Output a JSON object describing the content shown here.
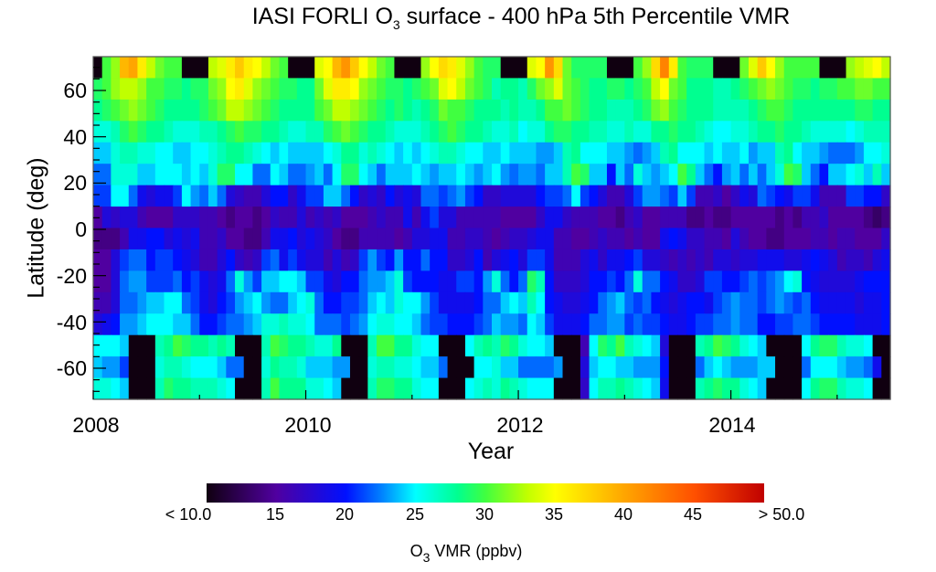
{
  "chart_data": {
    "type": "heatmap",
    "title_main": "IASI FORLI O",
    "title_sub": "3",
    "title_rest": " surface - 400 hPa 5th Percentile VMR",
    "xlabel": "Year",
    "ylabel": "Latitude (deg)",
    "x_start": "2008-01",
    "x_step": "1 month",
    "x_count": 90,
    "xlim": [
      2008.0,
      2015.5
    ],
    "ylim": [
      -73.4,
      74.6
    ],
    "x_ticks": [
      "2008",
      "2010",
      "2012",
      "2014"
    ],
    "y_ticks": [
      "60",
      "40",
      "20",
      "0",
      "-20",
      "-40",
      "-60"
    ],
    "colorbar": {
      "label_main": "O",
      "label_sub": "3",
      "label_rest": " VMR (ppbv)",
      "range": [
        10,
        50
      ],
      "ticks": [
        "< 10.0",
        "15",
        "20",
        "25",
        "30",
        "35",
        "40",
        "45",
        "> 50.0"
      ],
      "stops": [
        [
          10,
          "#100010"
        ],
        [
          15,
          "#5000a0"
        ],
        [
          20,
          "#0010ff"
        ],
        [
          22.5,
          "#0080ff"
        ],
        [
          25,
          "#00ffff"
        ],
        [
          28,
          "#00ff90"
        ],
        [
          30,
          "#40ff40"
        ],
        [
          33,
          "#c0ff00"
        ],
        [
          35,
          "#ffff00"
        ],
        [
          40,
          "#ffa500"
        ],
        [
          45,
          "#ff5000"
        ],
        [
          50,
          "#c00000"
        ]
      ]
    },
    "row_note": "rows ordered north to south, 16 latitude bands; values in ppbv",
    "values": [
      [
        8,
        30,
        32,
        39,
        40,
        36,
        33,
        31,
        30,
        30,
        8,
        8,
        8,
        33,
        34,
        36,
        38,
        36,
        35,
        33,
        31,
        30,
        8,
        8,
        8,
        34,
        35,
        39,
        41,
        38,
        35,
        33,
        31,
        30,
        8,
        8,
        8,
        32,
        35,
        37,
        36,
        34,
        32,
        30,
        29,
        29,
        8,
        8,
        8,
        34,
        35,
        41,
        37,
        31,
        29,
        29,
        29,
        29,
        8,
        8,
        8,
        30,
        32,
        37,
        42,
        36,
        30,
        29,
        29,
        29,
        8,
        8,
        8,
        31,
        34,
        38,
        35,
        32,
        30,
        30,
        30,
        30,
        8,
        8,
        8,
        32,
        33,
        34,
        35,
        33
      ],
      [
        29,
        30,
        32,
        33,
        33,
        32,
        30,
        30,
        29,
        29,
        28,
        29,
        29,
        31,
        32,
        35,
        36,
        34,
        32,
        31,
        30,
        29,
        29,
        28,
        28,
        31,
        34,
        36,
        36,
        35,
        32,
        31,
        30,
        29,
        29,
        28,
        29,
        30,
        31,
        34,
        35,
        33,
        31,
        30,
        29,
        27,
        28,
        28,
        27,
        29,
        31,
        32,
        34,
        31,
        30,
        29,
        28,
        28,
        29,
        29,
        28,
        29,
        30,
        33,
        35,
        31,
        30,
        28,
        28,
        28,
        27,
        27,
        28,
        29,
        30,
        31,
        32,
        31,
        30,
        29,
        29,
        28,
        29,
        29,
        30,
        30,
        31,
        31,
        30,
        30
      ],
      [
        28,
        29,
        30,
        31,
        32,
        31,
        30,
        29,
        28,
        28,
        28,
        28,
        29,
        30,
        31,
        33,
        33,
        32,
        31,
        30,
        29,
        28,
        28,
        28,
        28,
        30,
        31,
        33,
        33,
        32,
        31,
        30,
        29,
        28,
        29,
        28,
        27,
        28,
        29,
        31,
        30,
        30,
        29,
        28,
        28,
        28,
        27,
        28,
        27,
        27,
        28,
        30,
        30,
        31,
        30,
        29,
        28,
        28,
        27,
        27,
        27,
        28,
        29,
        31,
        32,
        30,
        29,
        28,
        28,
        28,
        27,
        27,
        27,
        27,
        28,
        29,
        30,
        30,
        29,
        28,
        28,
        28,
        28,
        28,
        28,
        28,
        29,
        29,
        28,
        28
      ],
      [
        26,
        26,
        27,
        29,
        30,
        29,
        28,
        28,
        27,
        26,
        26,
        26,
        27,
        27,
        28,
        29,
        30,
        29,
        29,
        28,
        28,
        27,
        26,
        26,
        27,
        27,
        29,
        30,
        31,
        30,
        29,
        28,
        28,
        27,
        26,
        26,
        26,
        27,
        28,
        29,
        30,
        29,
        28,
        28,
        27,
        26,
        26,
        27,
        25,
        26,
        26,
        28,
        29,
        29,
        28,
        28,
        27,
        27,
        26,
        26,
        27,
        26,
        26,
        28,
        28,
        29,
        28,
        28,
        27,
        26,
        25,
        25,
        26,
        26,
        27,
        28,
        28,
        29,
        28,
        28,
        27,
        26,
        26,
        26,
        26,
        25,
        26,
        27,
        27,
        27
      ],
      [
        24,
        24,
        26,
        27,
        27,
        26,
        26,
        25,
        25,
        24,
        24,
        25,
        25,
        26,
        27,
        28,
        28,
        27,
        26,
        25,
        24,
        25,
        24,
        24,
        24,
        24,
        25,
        26,
        28,
        28,
        26,
        27,
        26,
        25,
        24,
        25,
        24,
        25,
        26,
        27,
        27,
        26,
        25,
        25,
        24,
        24,
        25,
        24,
        24,
        24,
        23,
        23,
        24,
        27,
        28,
        25,
        25,
        25,
        24,
        24,
        23,
        22,
        23,
        24,
        27,
        28,
        25,
        25,
        25,
        24,
        25,
        24,
        24,
        25,
        23,
        24,
        24,
        27,
        28,
        25,
        24,
        24,
        23,
        22,
        22,
        22,
        23,
        25,
        25,
        26
      ],
      [
        22,
        22,
        26,
        26,
        26,
        24,
        24,
        25,
        25,
        25,
        24,
        25,
        24,
        26,
        29,
        29,
        25,
        25,
        22,
        22,
        25,
        24,
        22,
        22,
        23,
        24,
        22,
        25,
        29,
        29,
        25,
        24,
        22,
        24,
        24,
        24,
        25,
        24,
        23,
        24,
        24,
        25,
        24,
        23,
        24,
        25,
        23,
        22,
        23,
        23,
        22,
        24,
        24,
        27,
        30,
        29,
        24,
        24,
        20,
        24,
        22,
        26,
        24,
        23,
        24,
        25,
        30,
        28,
        24,
        22,
        20,
        23,
        24,
        22,
        24,
        22,
        24,
        26,
        30,
        29,
        24,
        22,
        20,
        24,
        24,
        25,
        26,
        24,
        27,
        24
      ],
      [
        21,
        21,
        25,
        25,
        22,
        19,
        18,
        19,
        19,
        21,
        25,
        23,
        22,
        24,
        22,
        18,
        17,
        16,
        16,
        18,
        20,
        20,
        17,
        19,
        21,
        21,
        24,
        24,
        22,
        20,
        17,
        18,
        17,
        20,
        18,
        19,
        18,
        22,
        22,
        21,
        22,
        23,
        21,
        20,
        17,
        17,
        18,
        18,
        18,
        18,
        20,
        21,
        21,
        22,
        25,
        21,
        20,
        18,
        16,
        16,
        18,
        21,
        23,
        23,
        22,
        21,
        24,
        21,
        16,
        16,
        17,
        15,
        17,
        19,
        18,
        22,
        21,
        20,
        19,
        21,
        21,
        19,
        16,
        16,
        16,
        21,
        21,
        20,
        20,
        17
      ],
      [
        15,
        18,
        17,
        18,
        18,
        16,
        15,
        15,
        15,
        17,
        17,
        17,
        16,
        16,
        15,
        14,
        15,
        15,
        14,
        15,
        17,
        16,
        16,
        18,
        16,
        17,
        16,
        17,
        15,
        15,
        15,
        16,
        17,
        16,
        16,
        19,
        16,
        19,
        21,
        18,
        18,
        16,
        16,
        16,
        16,
        16,
        15,
        15,
        15,
        15,
        17,
        19,
        19,
        17,
        16,
        16,
        16,
        15,
        15,
        14,
        16,
        17,
        15,
        15,
        16,
        16,
        16,
        14,
        14,
        15,
        14,
        14,
        15,
        15,
        15,
        15,
        15,
        14,
        15,
        14,
        16,
        16,
        17,
        15,
        15,
        15,
        15,
        14,
        13,
        14
      ],
      [
        14,
        14,
        14,
        16,
        19,
        19,
        20,
        20,
        18,
        19,
        18,
        19,
        16,
        16,
        17,
        15,
        15,
        14,
        14,
        16,
        19,
        19,
        20,
        18,
        19,
        18,
        17,
        15,
        14,
        14,
        16,
        16,
        16,
        16,
        15,
        16,
        18,
        18,
        19,
        19,
        16,
        16,
        17,
        17,
        16,
        15,
        16,
        17,
        17,
        18,
        19,
        19,
        16,
        16,
        15,
        15,
        16,
        17,
        16,
        16,
        15,
        16,
        15,
        15,
        19,
        20,
        19,
        17,
        17,
        16,
        16,
        15,
        18,
        16,
        15,
        15,
        14,
        14,
        15,
        15,
        15,
        16,
        16,
        15,
        16,
        16,
        15,
        15,
        15,
        17
      ],
      [
        15,
        15,
        18,
        21,
        22,
        22,
        20,
        21,
        21,
        20,
        19,
        18,
        16,
        16,
        18,
        20,
        17,
        16,
        17,
        21,
        22,
        19,
        21,
        19,
        18,
        18,
        16,
        18,
        16,
        17,
        21,
        23,
        21,
        20,
        23,
        20,
        20,
        22,
        20,
        20,
        17,
        17,
        18,
        20,
        16,
        18,
        19,
        20,
        18,
        21,
        21,
        19,
        16,
        16,
        16,
        18,
        19,
        17,
        19,
        19,
        20,
        21,
        18,
        18,
        17,
        16,
        17,
        16,
        17,
        16,
        18,
        18,
        17,
        18,
        18,
        19,
        19,
        19,
        18,
        18,
        19,
        20,
        19,
        18,
        16,
        17,
        17,
        16,
        18,
        19
      ],
      [
        15,
        15,
        18,
        22,
        23,
        23,
        21,
        21,
        21,
        22,
        20,
        21,
        19,
        18,
        19,
        22,
        26,
        23,
        21,
        24,
        24,
        25,
        25,
        24,
        21,
        21,
        19,
        18,
        20,
        20,
        22,
        23,
        23,
        24,
        26,
        21,
        20,
        20,
        20,
        19,
        19,
        21,
        21,
        20,
        23,
        26,
        22,
        20,
        22,
        29,
        27,
        20,
        17,
        17,
        17,
        18,
        20,
        20,
        21,
        20,
        22,
        26,
        22,
        22,
        20,
        19,
        17,
        17,
        18,
        21,
        21,
        20,
        20,
        21,
        22,
        21,
        22,
        23,
        25,
        26,
        20,
        19,
        18,
        18,
        18,
        18,
        19,
        20,
        20,
        20
      ],
      [
        16,
        16,
        18,
        22,
        22,
        23,
        24,
        24,
        25,
        25,
        22,
        21,
        19,
        18,
        20,
        21,
        23,
        24,
        25,
        23,
        22,
        22,
        24,
        25,
        26,
        22,
        20,
        20,
        21,
        21,
        22,
        24,
        25,
        24,
        26,
        25,
        25,
        23,
        21,
        19,
        19,
        19,
        19,
        20,
        22,
        22,
        24,
        25,
        24,
        27,
        25,
        20,
        19,
        18,
        18,
        19,
        20,
        22,
        23,
        24,
        22,
        21,
        22,
        20,
        19,
        18,
        19,
        20,
        20,
        19,
        21,
        22,
        23,
        22,
        22,
        21,
        22,
        23,
        22,
        21,
        22,
        20,
        19,
        19,
        19,
        19,
        18,
        19,
        19,
        20
      ],
      [
        18,
        19,
        20,
        23,
        23,
        24,
        25,
        25,
        25,
        24,
        24,
        22,
        20,
        20,
        21,
        22,
        22,
        23,
        24,
        26,
        26,
        27,
        26,
        26,
        25,
        22,
        22,
        22,
        21,
        22,
        23,
        25,
        26,
        26,
        25,
        25,
        24,
        22,
        21,
        21,
        20,
        20,
        20,
        21,
        22,
        24,
        23,
        23,
        22,
        25,
        24,
        21,
        19,
        19,
        19,
        20,
        22,
        22,
        23,
        23,
        21,
        22,
        21,
        21,
        20,
        19,
        19,
        20,
        21,
        21,
        22,
        22,
        23,
        22,
        22,
        20,
        20,
        21,
        21,
        22,
        22,
        21,
        20,
        20,
        20,
        20,
        19,
        19,
        19,
        20
      ],
      [
        25,
        25,
        25,
        24,
        8,
        8,
        8,
        27,
        28,
        30,
        29,
        28,
        28,
        27,
        28,
        27,
        8,
        8,
        8,
        27,
        30,
        29,
        28,
        28,
        27,
        26,
        26,
        28,
        8,
        8,
        8,
        27,
        30,
        30,
        28,
        28,
        26,
        25,
        25,
        8,
        8,
        8,
        25,
        27,
        28,
        27,
        29,
        28,
        26,
        25,
        25,
        24,
        8,
        8,
        8,
        16,
        25,
        29,
        28,
        30,
        27,
        26,
        25,
        24,
        18,
        8,
        8,
        8,
        27,
        28,
        30,
        29,
        28,
        26,
        25,
        24,
        8,
        8,
        8,
        8,
        25,
        28,
        29,
        29,
        27,
        26,
        26,
        25,
        8,
        8
      ],
      [
        24,
        23,
        23,
        21,
        8,
        8,
        8,
        26,
        27,
        27,
        26,
        25,
        25,
        25,
        24,
        22,
        22,
        8,
        8,
        26,
        28,
        27,
        27,
        26,
        24,
        24,
        24,
        23,
        23,
        8,
        8,
        26,
        27,
        27,
        26,
        26,
        25,
        24,
        24,
        22,
        8,
        8,
        8,
        25,
        25,
        26,
        24,
        24,
        22,
        22,
        22,
        22,
        23,
        8,
        8,
        18,
        24,
        25,
        25,
        24,
        24,
        23,
        23,
        23,
        20,
        8,
        8,
        8,
        22,
        24,
        25,
        24,
        23,
        23,
        23,
        24,
        24,
        8,
        8,
        8,
        22,
        25,
        25,
        25,
        24,
        23,
        23,
        22,
        19,
        8
      ],
      [
        26,
        26,
        25,
        24,
        8,
        8,
        8,
        27,
        29,
        28,
        28,
        27,
        27,
        27,
        26,
        25,
        8,
        8,
        8,
        27,
        30,
        28,
        28,
        28,
        26,
        26,
        25,
        24,
        8,
        8,
        8,
        27,
        29,
        29,
        28,
        28,
        26,
        25,
        25,
        8,
        8,
        8,
        25,
        26,
        27,
        26,
        28,
        27,
        26,
        25,
        25,
        25,
        8,
        8,
        8,
        17,
        25,
        27,
        27,
        28,
        27,
        26,
        25,
        24,
        19,
        8,
        8,
        8,
        27,
        28,
        29,
        28,
        28,
        26,
        25,
        24,
        8,
        8,
        8,
        8,
        25,
        28,
        29,
        29,
        27,
        26,
        26,
        25,
        8,
        8
      ]
    ]
  }
}
